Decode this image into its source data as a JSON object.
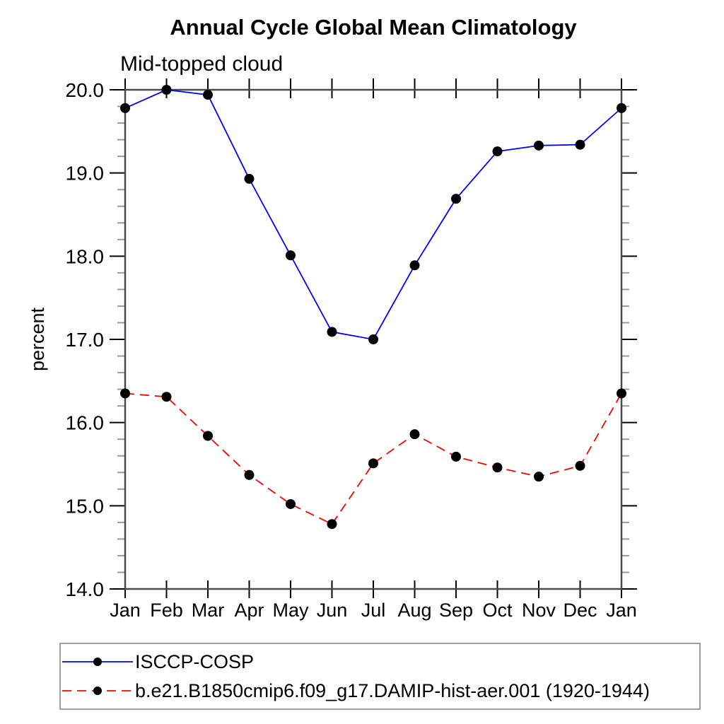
{
  "title": "Annual Cycle Global Mean Climatology",
  "subtitle": "Mid-topped cloud",
  "ylabel": "percent",
  "colors": {
    "series1": "#0000ff",
    "series2": "#ff0000",
    "marker": "#000000",
    "frame": "#4a4a4a",
    "major_tick": "#000000",
    "minor_tick": "#999999",
    "legend_border": "#808080",
    "background": "#ffffff",
    "text": "#000000"
  },
  "chart_data": {
    "type": "line",
    "title": "Annual Cycle Global Mean Climatology",
    "subtitle": "Mid-topped cloud",
    "xlabel": "",
    "ylabel": "percent",
    "categories": [
      "Jan",
      "Feb",
      "Mar",
      "Apr",
      "May",
      "Jun",
      "Jul",
      "Aug",
      "Sep",
      "Oct",
      "Nov",
      "Dec",
      "Jan"
    ],
    "ylim": [
      14.0,
      20.0
    ],
    "ytick_labels": [
      "14.0",
      "15.0",
      "16.0",
      "17.0",
      "18.0",
      "19.0",
      "20.0"
    ],
    "ytick_minor_step": 0.2,
    "grid": false,
    "legend_position": "bottom-left-boxed",
    "marker": "filled-circle",
    "series": [
      {
        "name": "ISCCP-COSP",
        "color": "#0000ff",
        "style": "solid",
        "values": [
          19.78,
          20.0,
          19.94,
          18.93,
          18.01,
          17.09,
          17.0,
          17.89,
          18.69,
          19.26,
          19.33,
          19.34,
          19.78
        ]
      },
      {
        "name": "b.e21.B1850cmip6.f09_g17.DAMIP-hist-aer.001 (1920-1944)",
        "color": "#ff0000",
        "style": "dashed",
        "values": [
          16.35,
          16.31,
          15.84,
          15.37,
          15.02,
          14.78,
          15.51,
          15.86,
          15.59,
          15.46,
          15.35,
          15.48,
          16.35
        ]
      }
    ]
  }
}
